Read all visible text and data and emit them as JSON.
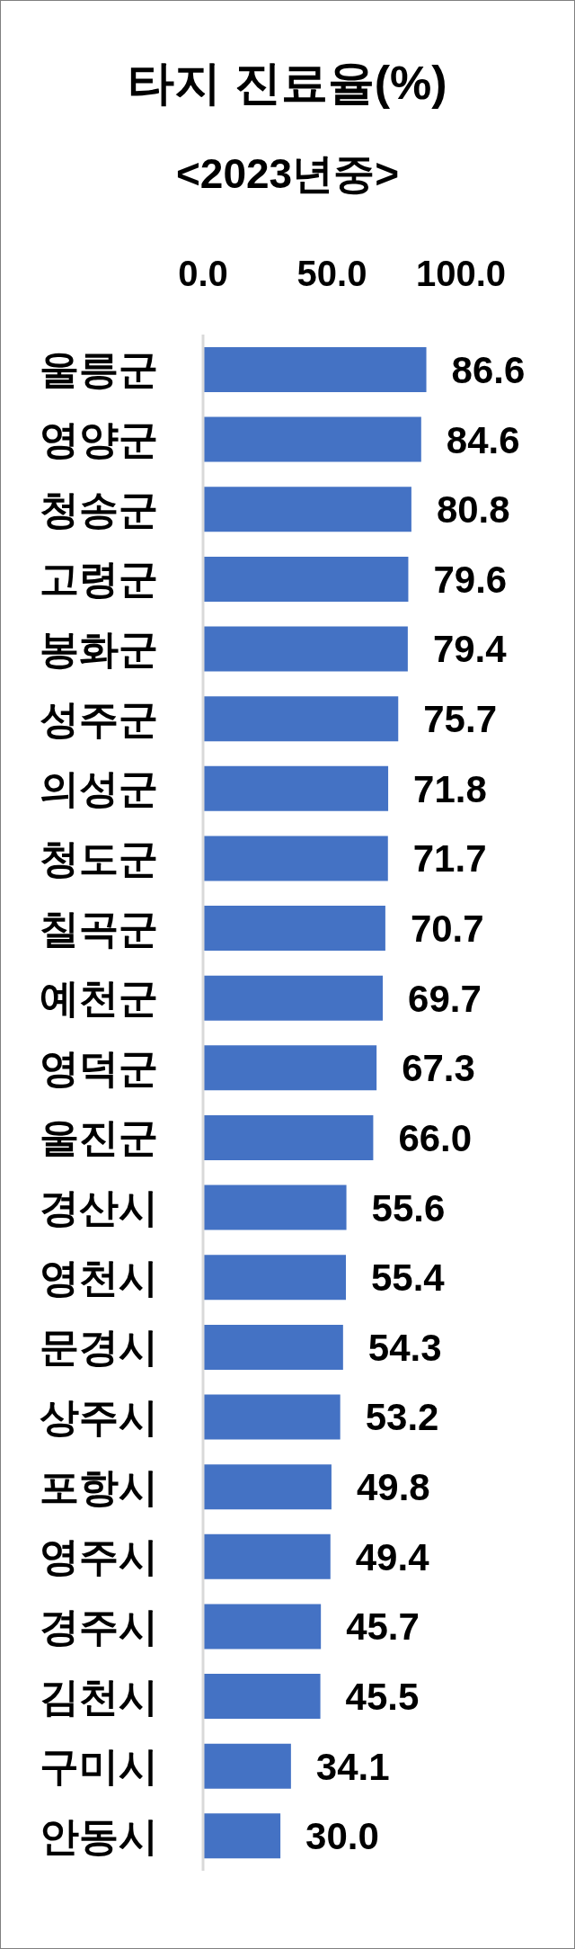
{
  "chart_data": {
    "type": "bar",
    "orientation": "horizontal",
    "title": "타지 진료율(%)",
    "subtitle": "<2023년중>",
    "categories": [
      "울릉군",
      "영양군",
      "청송군",
      "고령군",
      "봉화군",
      "성주군",
      "의성군",
      "청도군",
      "칠곡군",
      "예천군",
      "영덕군",
      "울진군",
      "경산시",
      "영천시",
      "문경시",
      "상주시",
      "포항시",
      "영주시",
      "경주시",
      "김천시",
      "구미시",
      "안동시"
    ],
    "values": [
      86.6,
      84.6,
      80.8,
      79.6,
      79.4,
      75.7,
      71.8,
      71.7,
      70.7,
      69.7,
      67.3,
      66.0,
      55.6,
      55.4,
      54.3,
      53.2,
      49.8,
      49.4,
      45.7,
      45.5,
      34.1,
      30.0
    ],
    "value_labels": [
      "86.6",
      "84.6",
      "80.8",
      "79.6",
      "79.4",
      "75.7",
      "71.8",
      "71.7",
      "70.7",
      "69.7",
      "67.3",
      "66.0",
      "55.6",
      "55.4",
      "54.3",
      "53.2",
      "49.8",
      "49.4",
      "45.7",
      "45.5",
      "34.1",
      "30.0"
    ],
    "color": "#4472c4",
    "xlim": [
      0,
      100
    ],
    "xticks": [
      {
        "value": 0,
        "label": "0.0"
      },
      {
        "value": 50,
        "label": "50.0"
      },
      {
        "value": 100,
        "label": "100.0"
      }
    ]
  }
}
